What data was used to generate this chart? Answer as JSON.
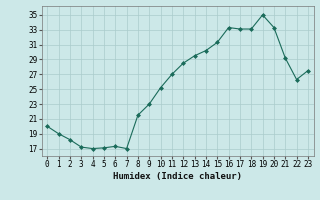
{
  "x": [
    0,
    1,
    2,
    3,
    4,
    5,
    6,
    7,
    8,
    9,
    10,
    11,
    12,
    13,
    14,
    15,
    16,
    17,
    18,
    19,
    20,
    21,
    22,
    23
  ],
  "y": [
    20,
    19,
    18.2,
    17.2,
    17.0,
    17.1,
    17.3,
    17.0,
    21.5,
    23.0,
    25.2,
    27.0,
    28.5,
    29.5,
    30.2,
    31.3,
    33.3,
    33.1,
    33.1,
    35.0,
    33.3,
    29.2,
    26.3,
    27.5
  ],
  "line_color": "#1a6b5a",
  "marker_color": "#1a6b5a",
  "bg_color": "#cce8e8",
  "grid_color": "#aacccc",
  "xlabel": "Humidex (Indice chaleur)",
  "yticks": [
    17,
    19,
    21,
    23,
    25,
    27,
    29,
    31,
    33,
    35
  ],
  "xticks": [
    0,
    1,
    2,
    3,
    4,
    5,
    6,
    7,
    8,
    9,
    10,
    11,
    12,
    13,
    14,
    15,
    16,
    17,
    18,
    19,
    20,
    21,
    22,
    23
  ],
  "ylim": [
    16.0,
    36.2
  ],
  "xlim": [
    -0.5,
    23.5
  ],
  "xlabel_fontsize": 6.5,
  "tick_fontsize": 5.5
}
